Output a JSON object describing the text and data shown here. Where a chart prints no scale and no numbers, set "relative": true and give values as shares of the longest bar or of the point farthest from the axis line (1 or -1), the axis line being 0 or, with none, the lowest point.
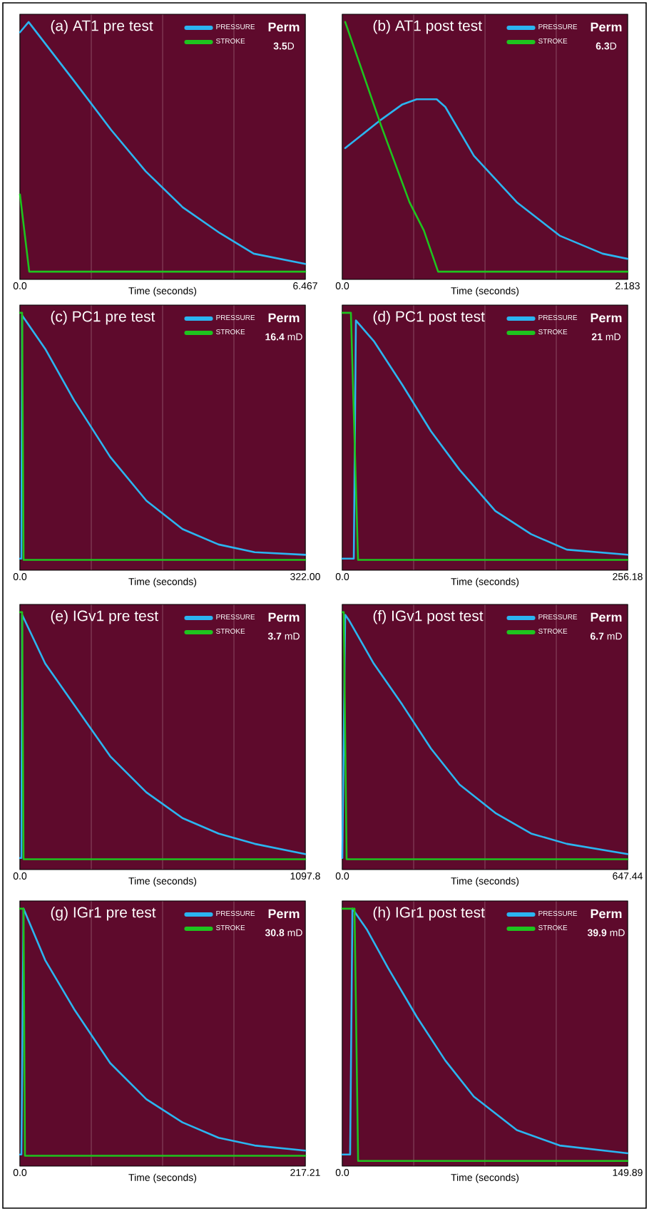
{
  "chart_data": [
    {
      "type": "line",
      "title": "(a) AT1 pre test",
      "xlabel": "Time (seconds)",
      "relative": true,
      "grid": "x",
      "legend": "top right",
      "xlim": [
        0,
        6.467
      ],
      "xticks": [
        {
          "value": 0,
          "label": "0.0"
        },
        {
          "value": 1.617,
          "label": null
        },
        {
          "value": 3.234,
          "label": null
        },
        {
          "value": 4.85,
          "label": null
        },
        6.467
      ],
      "annotations": [
        "Perm",
        "**3.5**D"
      ],
      "series": [
        {
          "name": "PRESSURE",
          "color": "#2bb5f0",
          "x": [
            0,
            0.196,
            1.23,
            2.07,
            2.85,
            3.69,
            4.53,
            5.3,
            6.467
          ],
          "values": [
            0.96,
            1,
            0.77,
            0.58,
            0.42,
            0.28,
            0.18,
            0.1,
            0.06
          ]
        },
        {
          "name": "STROKE",
          "color": "#1ec41e",
          "x": [
            0,
            0.21,
            6.467
          ],
          "values": [
            0.33,
            0.03,
            0.03
          ]
        }
      ]
    },
    {
      "type": "line",
      "title": "(b) AT1 post test",
      "xlabel": "Time (seconds)",
      "relative": true,
      "grid": "x",
      "legend": "top right",
      "xlim": [
        0,
        2.183
      ],
      "xticks": [
        {
          "value": 0,
          "label": "0.0"
        },
        {
          "value": 0.546,
          "label": null
        },
        {
          "value": 1.092,
          "label": null
        },
        {
          "value": 1.637,
          "label": null
        },
        2.183
      ],
      "annotations": [
        "Perm",
        "**6.3**D"
      ],
      "series": [
        {
          "name": "PRESSURE",
          "color": "#2bb5f0",
          "x": [
            0.022,
            0.295,
            0.46,
            0.569,
            0.722,
            0.788,
            1.007,
            1.335,
            1.663,
            1.992,
            2.183
          ],
          "values": [
            0.51,
            0.62,
            0.68,
            0.7,
            0.7,
            0.67,
            0.48,
            0.3,
            0.17,
            0.1,
            0.08
          ]
        },
        {
          "name": "STROKE",
          "color": "#1ec41e",
          "x": [
            0.022,
            0.295,
            0.514,
            0.624,
            0.733,
            2.183
          ],
          "values": [
            1,
            0.6,
            0.3,
            0.19,
            0.03,
            0.03
          ]
        }
      ]
    },
    {
      "type": "line",
      "title": "(c) PC1 pre test",
      "xlabel": "Time (seconds)",
      "relative": true,
      "grid": "x",
      "legend": "top right",
      "xlim": [
        0,
        322
      ],
      "xticks": [
        {
          "value": 0,
          "label": "0.0"
        },
        {
          "value": 80.5,
          "label": null
        },
        {
          "value": 161,
          "label": null
        },
        {
          "value": 241.5,
          "label": null
        },
        {
          "value": 322,
          "label": "322.00"
        }
      ],
      "annotations": [
        "Perm",
        "**16.4** mD"
      ],
      "series": [
        {
          "name": "PRESSURE",
          "color": "#2bb5f0",
          "x": [
            0,
            1.6,
            2.4,
            28.5,
            61.1,
            101.9,
            142.7,
            183.4,
            224.2,
            265,
            322
          ],
          "values": [
            0.045,
            0.045,
            0.99,
            0.86,
            0.66,
            0.44,
            0.27,
            0.16,
            0.1,
            0.07,
            0.06
          ]
        },
        {
          "name": "STROKE",
          "color": "#1ec41e",
          "x": [
            0,
            2.4,
            4.1,
            322
          ],
          "values": [
            1,
            1,
            0.04,
            0.04
          ]
        }
      ]
    },
    {
      "type": "line",
      "title": "(d) PC1 post test",
      "xlabel": "Time (seconds)",
      "relative": true,
      "grid": "x",
      "legend": "top right",
      "xlim": [
        0,
        256.18
      ],
      "xticks": [
        {
          "value": 0,
          "label": "0.0"
        },
        {
          "value": 64.05,
          "label": null
        },
        {
          "value": 128.09,
          "label": null
        },
        {
          "value": 192.14,
          "label": null
        },
        256.18
      ],
      "annotations": [
        "Perm",
        "**21** mD"
      ],
      "series": [
        {
          "name": "PRESSURE",
          "color": "#2bb5f0",
          "x": [
            0,
            10.3,
            12.2,
            28.3,
            53.9,
            79.6,
            105.3,
            137.4,
            169.5,
            201.6,
            256.18
          ],
          "values": [
            0.045,
            0.045,
            0.97,
            0.89,
            0.72,
            0.54,
            0.39,
            0.23,
            0.14,
            0.08,
            0.06
          ]
        },
        {
          "name": "STROKE",
          "color": "#1ec41e",
          "x": [
            0,
            7.7,
            14.1,
            256.18
          ],
          "values": [
            1,
            1,
            0.04,
            0.04
          ]
        }
      ]
    },
    {
      "type": "line",
      "title": "(e) IGv1 pre test",
      "xlabel": "Time (seconds)",
      "relative": true,
      "grid": "x",
      "legend": "top right",
      "xlim": [
        0,
        1097.8
      ],
      "xticks": [
        {
          "value": 0,
          "label": "0.0"
        },
        {
          "value": 274.5,
          "label": null
        },
        {
          "value": 548.9,
          "label": null
        },
        {
          "value": 823.4,
          "label": null
        },
        1097.8
      ],
      "annotations": [
        "Perm",
        "**3.7** mD"
      ],
      "series": [
        {
          "name": "PRESSURE",
          "color": "#2bb5f0",
          "x": [
            0,
            5.6,
            8.3,
            97.3,
            208.4,
            347.4,
            486.4,
            625.3,
            764.3,
            903.2,
            1097.8
          ],
          "values": [
            0.045,
            0.045,
            0.99,
            0.8,
            0.64,
            0.44,
            0.3,
            0.2,
            0.14,
            0.1,
            0.06
          ]
        },
        {
          "name": "STROKE",
          "color": "#1ec41e",
          "x": [
            0,
            8.3,
            13.9,
            1097.8
          ],
          "values": [
            1,
            1,
            0.04,
            0.04
          ]
        }
      ]
    },
    {
      "type": "line",
      "title": "(f) IGv1 post test",
      "xlabel": "Time (seconds)",
      "relative": true,
      "grid": "x",
      "legend": "top right",
      "xlim": [
        0,
        647.44
      ],
      "xticks": [
        {
          "value": 0,
          "label": "0.0"
        },
        {
          "value": 161.9,
          "label": null
        },
        {
          "value": 323.7,
          "label": null
        },
        {
          "value": 485.6,
          "label": null
        },
        647.44
      ],
      "annotations": [
        "Perm",
        "**6.7** mD"
      ],
      "series": [
        {
          "name": "PRESSURE",
          "color": "#2bb5f0",
          "x": [
            0,
            6.5,
            14.6,
            71.4,
            136.3,
            201.2,
            266.1,
            347.3,
            428.4,
            509.5,
            647.44
          ],
          "values": [
            0.045,
            0.99,
            0.97,
            0.8,
            0.64,
            0.47,
            0.33,
            0.22,
            0.14,
            0.1,
            0.06
          ]
        },
        {
          "name": "STROKE",
          "color": "#1ec41e",
          "x": [
            0,
            3.2,
            9.7,
            647.44
          ],
          "values": [
            1,
            1,
            0.04,
            0.04
          ]
        }
      ]
    },
    {
      "type": "line",
      "title": "(g) IGr1 pre test",
      "xlabel": "Time (seconds)",
      "relative": true,
      "grid": "x",
      "legend": "top right",
      "xlim": [
        0,
        217.21
      ],
      "xticks": [
        {
          "value": 0,
          "label": "0.0"
        },
        {
          "value": 54.3,
          "label": null
        },
        {
          "value": 108.6,
          "label": null
        },
        {
          "value": 162.9,
          "label": null
        },
        217.21
      ],
      "annotations": [
        "Perm",
        "**30.8** mD"
      ],
      "series": [
        {
          "name": "PRESSURE",
          "color": "#2bb5f0",
          "x": [
            0,
            1.1,
            2.7,
            19.2,
            41.2,
            68.7,
            96.2,
            123.7,
            151.2,
            178.7,
            217.21
          ],
          "values": [
            0.045,
            0.045,
            1,
            0.8,
            0.61,
            0.4,
            0.26,
            0.17,
            0.11,
            0.08,
            0.06
          ]
        },
        {
          "name": "STROKE",
          "color": "#1ec41e",
          "x": [
            0,
            2.7,
            3.8,
            217.21
          ],
          "values": [
            1,
            1,
            0.04,
            0.04
          ]
        }
      ]
    },
    {
      "type": "line",
      "title": "(h) IGr1 post test",
      "xlabel": "Time (seconds)",
      "relative": true,
      "grid": "x",
      "legend": "top right",
      "xlim": [
        0,
        149.89
      ],
      "xticks": [
        {
          "value": 0,
          "label": "0.0"
        },
        {
          "value": 37.5,
          "label": null
        },
        {
          "value": 74.9,
          "label": null
        },
        {
          "value": 112.4,
          "label": null
        },
        149.89
      ],
      "annotations": [
        "Perm",
        "**39.9** mD"
      ],
      "series": [
        {
          "name": "PRESSURE",
          "color": "#2bb5f0",
          "x": [
            0,
            4.1,
            5.3,
            12.8,
            24.0,
            39.1,
            54.1,
            69.1,
            91.7,
            114.2,
            149.89
          ],
          "values": [
            0.045,
            0.045,
            1,
            0.92,
            0.77,
            0.58,
            0.41,
            0.27,
            0.14,
            0.08,
            0.05
          ]
        },
        {
          "name": "STROKE",
          "color": "#1ec41e",
          "x": [
            0,
            6.4,
            8.3,
            149.89
          ],
          "values": [
            1,
            1,
            0.02,
            0.02
          ]
        }
      ]
    }
  ]
}
